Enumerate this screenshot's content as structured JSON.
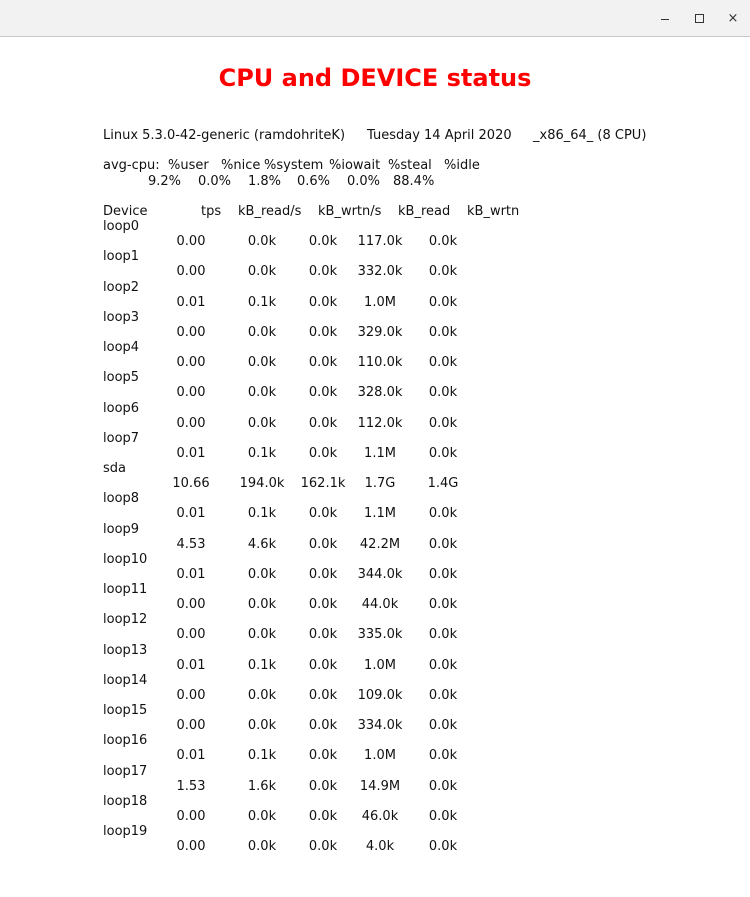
{
  "window": {
    "title": "CPU and DEVICE status",
    "buttons": {
      "minimize": "–",
      "maximize": "□",
      "close": "×"
    }
  },
  "system": {
    "kernel": "Linux 5.3.0-42-generic (ramdohriteK)",
    "date": "Tuesday 14 April 2020",
    "arch": "_x86_64_ (8 CPU)"
  },
  "cpu": {
    "label": "avg-cpu:",
    "headers": [
      "%user",
      "%nice",
      "%system",
      "%iowait",
      "%steal",
      "%idle"
    ],
    "values": [
      "9.2%",
      "0.0%",
      "1.8%",
      "0.6%",
      "0.0%",
      "88.4%"
    ]
  },
  "device_table": {
    "headers": [
      "Device",
      "tps",
      "kB_read/s",
      "kB_wrtn/s",
      "kB_read",
      "kB_wrtn"
    ],
    "rows": [
      {
        "name": "loop0",
        "tps": "0.00",
        "read_s": "0.0k",
        "wrtn_s": "0.0k",
        "read": "117.0k",
        "wrtn": "0.0k"
      },
      {
        "name": "loop1",
        "tps": "0.00",
        "read_s": "0.0k",
        "wrtn_s": "0.0k",
        "read": "332.0k",
        "wrtn": "0.0k"
      },
      {
        "name": "loop2",
        "tps": "0.01",
        "read_s": "0.1k",
        "wrtn_s": "0.0k",
        "read": "1.0M",
        "wrtn": "0.0k"
      },
      {
        "name": "loop3",
        "tps": "0.00",
        "read_s": "0.0k",
        "wrtn_s": "0.0k",
        "read": "329.0k",
        "wrtn": "0.0k"
      },
      {
        "name": "loop4",
        "tps": "0.00",
        "read_s": "0.0k",
        "wrtn_s": "0.0k",
        "read": "110.0k",
        "wrtn": "0.0k"
      },
      {
        "name": "loop5",
        "tps": "0.00",
        "read_s": "0.0k",
        "wrtn_s": "0.0k",
        "read": "328.0k",
        "wrtn": "0.0k"
      },
      {
        "name": "loop6",
        "tps": "0.00",
        "read_s": "0.0k",
        "wrtn_s": "0.0k",
        "read": "112.0k",
        "wrtn": "0.0k"
      },
      {
        "name": "loop7",
        "tps": "0.01",
        "read_s": "0.1k",
        "wrtn_s": "0.0k",
        "read": "1.1M",
        "wrtn": "0.0k"
      },
      {
        "name": "sda",
        "tps": "10.66",
        "read_s": "194.0k",
        "wrtn_s": "162.1k",
        "read": "1.7G",
        "wrtn": "1.4G"
      },
      {
        "name": "loop8",
        "tps": "0.01",
        "read_s": "0.1k",
        "wrtn_s": "0.0k",
        "read": "1.1M",
        "wrtn": "0.0k"
      },
      {
        "name": "loop9",
        "tps": "4.53",
        "read_s": "4.6k",
        "wrtn_s": "0.0k",
        "read": "42.2M",
        "wrtn": "0.0k"
      },
      {
        "name": "loop10",
        "tps": "0.01",
        "read_s": "0.0k",
        "wrtn_s": "0.0k",
        "read": "344.0k",
        "wrtn": "0.0k"
      },
      {
        "name": "loop11",
        "tps": "0.00",
        "read_s": "0.0k",
        "wrtn_s": "0.0k",
        "read": "44.0k",
        "wrtn": "0.0k"
      },
      {
        "name": "loop12",
        "tps": "0.00",
        "read_s": "0.0k",
        "wrtn_s": "0.0k",
        "read": "335.0k",
        "wrtn": "0.0k"
      },
      {
        "name": "loop13",
        "tps": "0.01",
        "read_s": "0.1k",
        "wrtn_s": "0.0k",
        "read": "1.0M",
        "wrtn": "0.0k"
      },
      {
        "name": "loop14",
        "tps": "0.00",
        "read_s": "0.0k",
        "wrtn_s": "0.0k",
        "read": "109.0k",
        "wrtn": "0.0k"
      },
      {
        "name": "loop15",
        "tps": "0.00",
        "read_s": "0.0k",
        "wrtn_s": "0.0k",
        "read": "334.0k",
        "wrtn": "0.0k"
      },
      {
        "name": "loop16",
        "tps": "0.01",
        "read_s": "0.1k",
        "wrtn_s": "0.0k",
        "read": "1.0M",
        "wrtn": "0.0k"
      },
      {
        "name": "loop17",
        "tps": "1.53",
        "read_s": "1.6k",
        "wrtn_s": "0.0k",
        "read": "14.9M",
        "wrtn": "0.0k"
      },
      {
        "name": "loop18",
        "tps": "0.00",
        "read_s": "0.0k",
        "wrtn_s": "0.0k",
        "read": "46.0k",
        "wrtn": "0.0k"
      },
      {
        "name": "loop19",
        "tps": "0.00",
        "read_s": "0.0k",
        "wrtn_s": "0.0k",
        "read": "4.0k",
        "wrtn": "0.0k"
      }
    ]
  },
  "colors": {
    "title": "#ff0000",
    "text": "#111111",
    "titlebar": "#f2f2f2"
  }
}
